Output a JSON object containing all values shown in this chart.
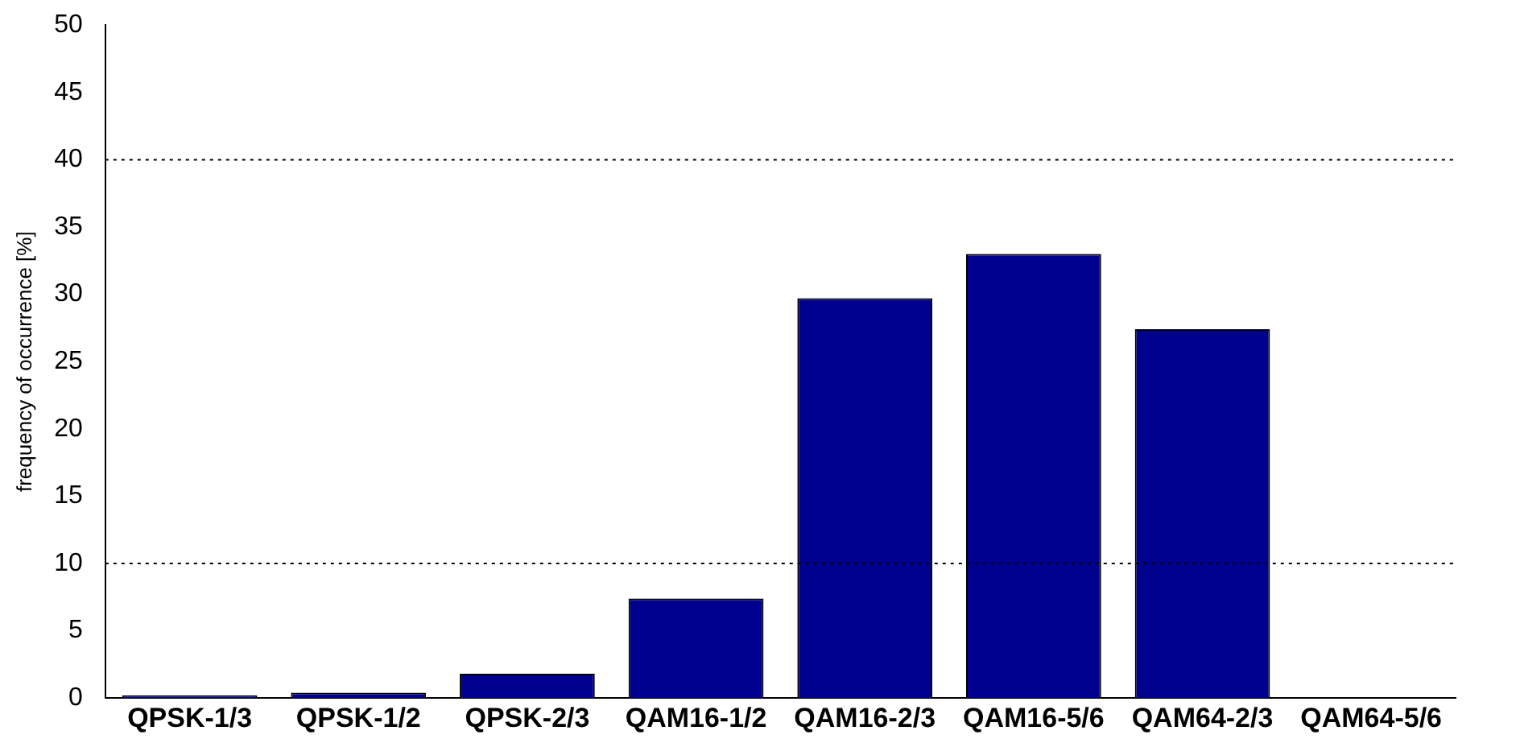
{
  "chart_data": {
    "type": "bar",
    "ylabel": "frequency of occurrence [%]",
    "categories": [
      "QPSK-1/3",
      "QPSK-1/2",
      "QPSK-2/3",
      "QAM16-1/2",
      "QAM16-2/3",
      "QAM16-5/6",
      "QAM64-2/3",
      "QAM64-5/6"
    ],
    "values": [
      0.2,
      0.4,
      1.8,
      7.4,
      29.7,
      33,
      27.4,
      0
    ],
    "color": "#00008f",
    "ylim": [
      0,
      50
    ],
    "yticks": [
      0,
      5,
      10,
      15,
      20,
      25,
      30,
      35,
      40,
      45,
      50
    ],
    "ref_lines": [
      {
        "axis": "y",
        "value": 10,
        "line_style": "dotted",
        "color": "#000000"
      },
      {
        "axis": "y",
        "value": 40,
        "line_style": "dotted",
        "color": "#000000"
      }
    ],
    "grid": false,
    "legend": false
  }
}
